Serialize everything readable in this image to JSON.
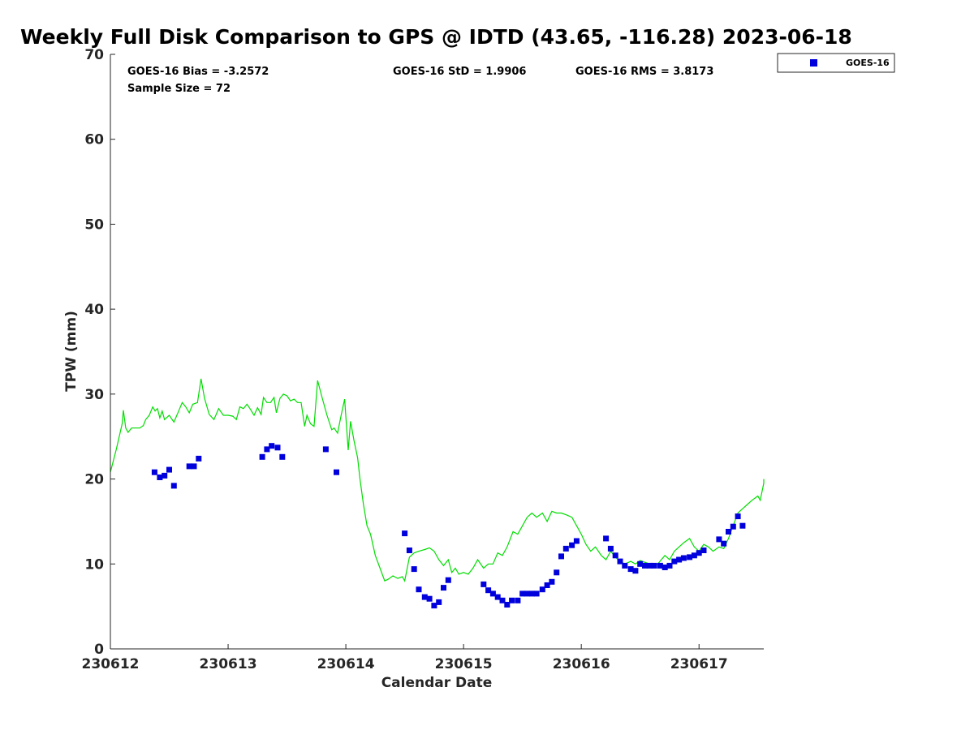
{
  "chart_data": {
    "type": "scatter",
    "title": "Weekly Full Disk Comparison to GPS @ IDTD (43.65, -116.28) 2023-06-18",
    "xlabel": "Calendar Date",
    "ylabel": "TPW (mm)",
    "xlim": [
      0,
      5.55
    ],
    "ylim": [
      0,
      70
    ],
    "x_ticks": [
      0,
      1,
      2,
      3,
      4,
      5
    ],
    "x_tick_labels": [
      "230612",
      "230613",
      "230614",
      "230615",
      "230616",
      "230617"
    ],
    "y_ticks": [
      0,
      10,
      20,
      30,
      40,
      50,
      60,
      70
    ],
    "y_tick_labels": [
      "0",
      "10",
      "20",
      "30",
      "40",
      "50",
      "60",
      "70"
    ],
    "grid": false,
    "legend_position": "top-right, outside plot",
    "stats": {
      "bias": "GOES-16 Bias = -3.2572",
      "std": "GOES-16 StD = 1.9906",
      "rms": "GOES-16 RMS = 3.8173",
      "sample": "Sample Size = 72"
    },
    "series": [
      {
        "name": "GOES-16",
        "kind": "scatter",
        "color": "#0000dd",
        "marker": "square",
        "points": [
          [
            0.375,
            20.8
          ],
          [
            0.42,
            20.2
          ],
          [
            0.46,
            20.4
          ],
          [
            0.5,
            21.1
          ],
          [
            0.54,
            19.2
          ],
          [
            0.67,
            21.5
          ],
          [
            0.71,
            21.5
          ],
          [
            0.75,
            22.4
          ],
          [
            1.29,
            22.6
          ],
          [
            1.33,
            23.5
          ],
          [
            1.37,
            23.9
          ],
          [
            1.42,
            23.7
          ],
          [
            1.46,
            22.6
          ],
          [
            1.83,
            23.5
          ],
          [
            1.92,
            20.8
          ],
          [
            2.5,
            13.6
          ],
          [
            2.54,
            11.6
          ],
          [
            2.58,
            9.4
          ],
          [
            2.62,
            7.0
          ],
          [
            2.67,
            6.1
          ],
          [
            2.71,
            5.9
          ],
          [
            2.75,
            5.1
          ],
          [
            2.79,
            5.5
          ],
          [
            2.83,
            7.2
          ],
          [
            2.87,
            8.1
          ],
          [
            3.17,
            7.6
          ],
          [
            3.21,
            6.9
          ],
          [
            3.25,
            6.5
          ],
          [
            3.29,
            6.1
          ],
          [
            3.33,
            5.7
          ],
          [
            3.37,
            5.2
          ],
          [
            3.41,
            5.7
          ],
          [
            3.46,
            5.7
          ],
          [
            3.5,
            6.5
          ],
          [
            3.54,
            6.5
          ],
          [
            3.58,
            6.5
          ],
          [
            3.62,
            6.5
          ],
          [
            3.67,
            7.0
          ],
          [
            3.71,
            7.5
          ],
          [
            3.75,
            7.9
          ],
          [
            3.79,
            9.0
          ],
          [
            3.83,
            10.9
          ],
          [
            3.87,
            11.8
          ],
          [
            3.92,
            12.2
          ],
          [
            3.96,
            12.7
          ],
          [
            4.21,
            13.0
          ],
          [
            4.25,
            11.8
          ],
          [
            4.29,
            11.0
          ],
          [
            4.33,
            10.3
          ],
          [
            4.37,
            9.8
          ],
          [
            4.42,
            9.4
          ],
          [
            4.46,
            9.2
          ],
          [
            4.5,
            10.0
          ],
          [
            4.54,
            9.8
          ],
          [
            4.58,
            9.8
          ],
          [
            4.62,
            9.8
          ],
          [
            4.67,
            9.8
          ],
          [
            4.71,
            9.6
          ],
          [
            4.75,
            9.8
          ],
          [
            4.79,
            10.3
          ],
          [
            4.83,
            10.5
          ],
          [
            4.87,
            10.7
          ],
          [
            4.92,
            10.8
          ],
          [
            4.96,
            11.0
          ],
          [
            5.0,
            11.3
          ],
          [
            5.04,
            11.6
          ],
          [
            5.17,
            12.9
          ],
          [
            5.21,
            12.4
          ],
          [
            5.25,
            13.8
          ],
          [
            5.29,
            14.4
          ],
          [
            5.33,
            15.6
          ],
          [
            5.37,
            14.5
          ]
        ]
      },
      {
        "kind": "line",
        "color": "#00dd00",
        "points": [
          [
            0.0,
            20.8
          ],
          [
            0.05,
            23.5
          ],
          [
            0.1,
            26.5
          ],
          [
            0.11,
            28.1
          ],
          [
            0.13,
            26.0
          ],
          [
            0.15,
            25.5
          ],
          [
            0.18,
            26.0
          ],
          [
            0.25,
            26.0
          ],
          [
            0.28,
            26.3
          ],
          [
            0.3,
            27.0
          ],
          [
            0.33,
            27.5
          ],
          [
            0.36,
            28.5
          ],
          [
            0.38,
            28.0
          ],
          [
            0.4,
            28.3
          ],
          [
            0.42,
            27.2
          ],
          [
            0.44,
            28.0
          ],
          [
            0.46,
            27.0
          ],
          [
            0.5,
            27.5
          ],
          [
            0.54,
            26.7
          ],
          [
            0.58,
            28.0
          ],
          [
            0.61,
            29.0
          ],
          [
            0.64,
            28.5
          ],
          [
            0.67,
            27.8
          ],
          [
            0.7,
            28.8
          ],
          [
            0.74,
            29.0
          ],
          [
            0.77,
            31.8
          ],
          [
            0.8,
            29.5
          ],
          [
            0.84,
            27.6
          ],
          [
            0.88,
            27.0
          ],
          [
            0.92,
            28.3
          ],
          [
            0.96,
            27.5
          ],
          [
            1.0,
            27.5
          ],
          [
            1.04,
            27.4
          ],
          [
            1.07,
            27.0
          ],
          [
            1.1,
            28.5
          ],
          [
            1.13,
            28.3
          ],
          [
            1.16,
            28.8
          ],
          [
            1.19,
            28.2
          ],
          [
            1.22,
            27.5
          ],
          [
            1.25,
            28.4
          ],
          [
            1.28,
            27.6
          ],
          [
            1.3,
            29.6
          ],
          [
            1.33,
            29.0
          ],
          [
            1.36,
            29.0
          ],
          [
            1.39,
            29.6
          ],
          [
            1.41,
            27.8
          ],
          [
            1.44,
            29.5
          ],
          [
            1.47,
            30.0
          ],
          [
            1.5,
            29.8
          ],
          [
            1.53,
            29.2
          ],
          [
            1.56,
            29.4
          ],
          [
            1.59,
            29.0
          ],
          [
            1.62,
            29.0
          ],
          [
            1.65,
            26.2
          ],
          [
            1.67,
            27.5
          ],
          [
            1.7,
            26.5
          ],
          [
            1.73,
            26.2
          ],
          [
            1.76,
            31.6
          ],
          [
            1.8,
            29.5
          ],
          [
            1.84,
            27.5
          ],
          [
            1.88,
            25.8
          ],
          [
            1.9,
            26.0
          ],
          [
            1.93,
            25.4
          ],
          [
            1.96,
            27.5
          ],
          [
            1.99,
            29.4
          ],
          [
            2.02,
            23.4
          ],
          [
            2.04,
            26.8
          ],
          [
            2.07,
            24.5
          ],
          [
            2.1,
            22.5
          ],
          [
            2.12,
            20.0
          ],
          [
            2.15,
            17.0
          ],
          [
            2.18,
            14.5
          ],
          [
            2.21,
            13.5
          ],
          [
            2.25,
            11.0
          ],
          [
            2.29,
            9.5
          ],
          [
            2.33,
            8.0
          ],
          [
            2.36,
            8.2
          ],
          [
            2.4,
            8.6
          ],
          [
            2.44,
            8.3
          ],
          [
            2.48,
            8.5
          ],
          [
            2.5,
            8.0
          ],
          [
            2.54,
            10.8
          ],
          [
            2.58,
            11.3
          ],
          [
            2.62,
            11.5
          ],
          [
            2.67,
            11.7
          ],
          [
            2.71,
            11.9
          ],
          [
            2.75,
            11.5
          ],
          [
            2.79,
            10.5
          ],
          [
            2.83,
            9.8
          ],
          [
            2.87,
            10.5
          ],
          [
            2.9,
            9.0
          ],
          [
            2.93,
            9.5
          ],
          [
            2.96,
            8.8
          ],
          [
            3.0,
            9.0
          ],
          [
            3.04,
            8.8
          ],
          [
            3.08,
            9.5
          ],
          [
            3.12,
            10.5
          ],
          [
            3.17,
            9.5
          ],
          [
            3.21,
            10.0
          ],
          [
            3.25,
            10.0
          ],
          [
            3.29,
            11.3
          ],
          [
            3.33,
            11.0
          ],
          [
            3.37,
            12.0
          ],
          [
            3.42,
            13.8
          ],
          [
            3.46,
            13.5
          ],
          [
            3.5,
            14.5
          ],
          [
            3.54,
            15.5
          ],
          [
            3.58,
            16.0
          ],
          [
            3.62,
            15.5
          ],
          [
            3.67,
            16.0
          ],
          [
            3.71,
            15.0
          ],
          [
            3.75,
            16.2
          ],
          [
            3.79,
            16.0
          ],
          [
            3.83,
            16.0
          ],
          [
            3.87,
            15.8
          ],
          [
            3.92,
            15.5
          ],
          [
            3.96,
            14.5
          ],
          [
            4.0,
            13.5
          ],
          [
            4.04,
            12.3
          ],
          [
            4.08,
            11.5
          ],
          [
            4.12,
            12.0
          ],
          [
            4.17,
            11.0
          ],
          [
            4.21,
            10.5
          ],
          [
            4.25,
            11.5
          ],
          [
            4.29,
            10.8
          ],
          [
            4.33,
            10.3
          ],
          [
            4.37,
            10.0
          ],
          [
            4.42,
            10.3
          ],
          [
            4.46,
            10.0
          ],
          [
            4.5,
            10.4
          ],
          [
            4.54,
            10.2
          ],
          [
            4.58,
            10.0
          ],
          [
            4.62,
            9.8
          ],
          [
            4.65,
            10.0
          ],
          [
            4.68,
            10.5
          ],
          [
            4.71,
            11.0
          ],
          [
            4.75,
            10.5
          ],
          [
            4.79,
            11.5
          ],
          [
            4.83,
            12.0
          ],
          [
            4.87,
            12.5
          ],
          [
            4.92,
            13.0
          ],
          [
            4.96,
            12.0
          ],
          [
            5.0,
            11.5
          ],
          [
            5.04,
            12.3
          ],
          [
            5.08,
            12.0
          ],
          [
            5.12,
            11.5
          ],
          [
            5.17,
            12.0
          ],
          [
            5.21,
            11.8
          ],
          [
            5.25,
            13.0
          ],
          [
            5.29,
            14.5
          ],
          [
            5.33,
            16.0
          ],
          [
            5.37,
            16.5
          ],
          [
            5.41,
            17.0
          ],
          [
            5.45,
            17.5
          ],
          [
            5.48,
            17.8
          ],
          [
            5.5,
            18.0
          ],
          [
            5.52,
            17.5
          ],
          [
            5.55,
            19.5
          ],
          [
            5.58,
            18.5
          ],
          [
            5.62,
            20.0
          ],
          [
            5.66,
            20.3
          ],
          [
            5.7,
            19.5
          ],
          [
            5.74,
            19.8
          ],
          [
            5.78,
            20.0
          ],
          [
            5.55,
            20.0
          ]
        ]
      }
    ]
  }
}
